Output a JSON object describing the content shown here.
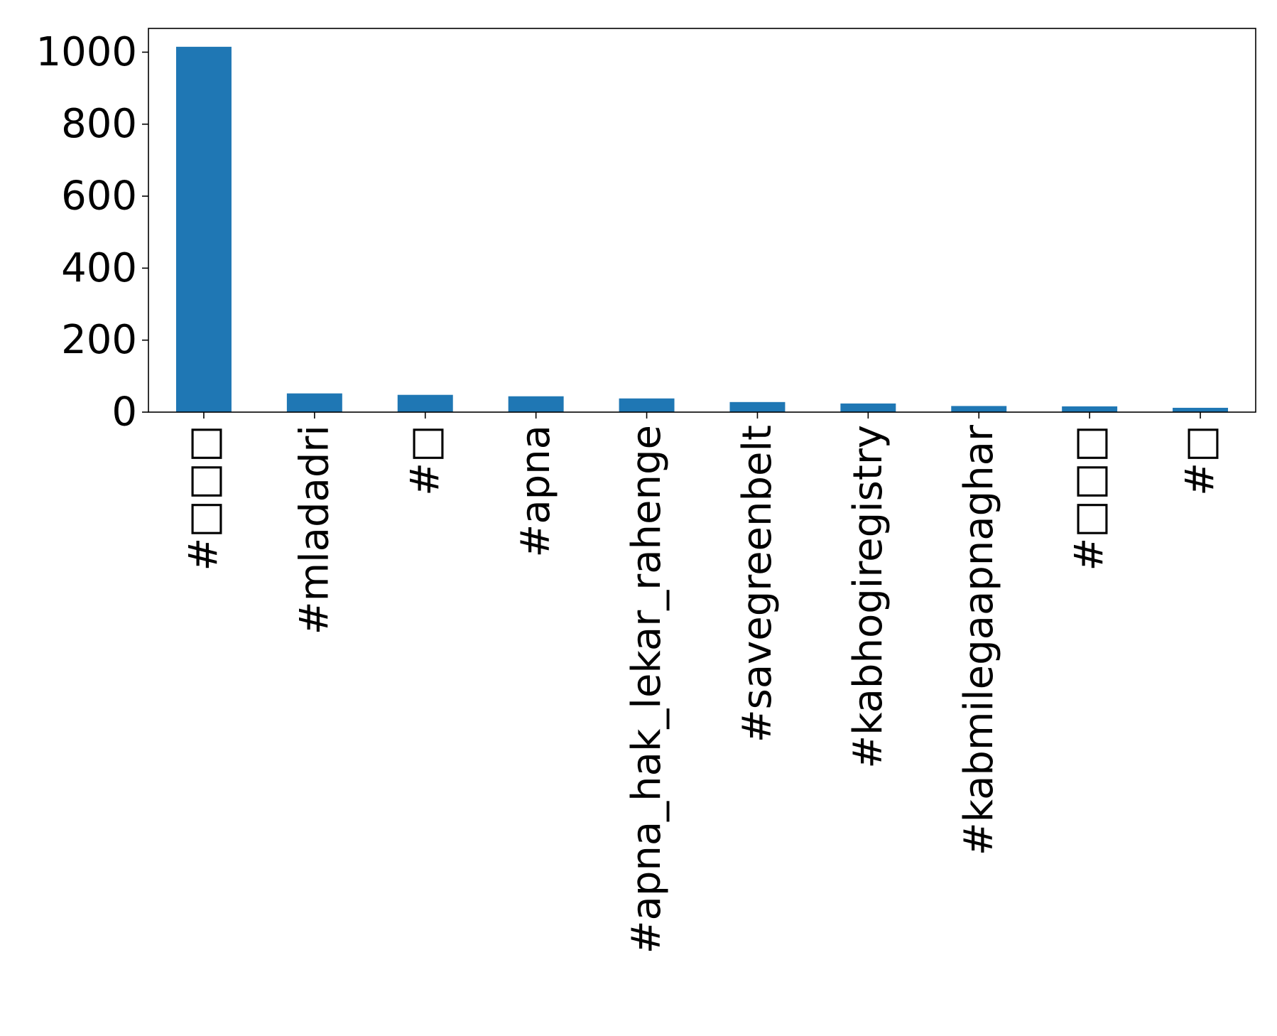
{
  "chart_data": {
    "type": "bar",
    "title": "",
    "xlabel": "",
    "ylabel": "",
    "categories": [
      "#□□□",
      "#mladadri",
      "#□",
      "#apna",
      "#apna_hak_lekar_rahenge",
      "#savegreenbelt",
      "#kabhogiregistry",
      "#kabmilegaapnaghar",
      "#□□□",
      "#□"
    ],
    "values": [
      1015,
      52,
      48,
      44,
      38,
      28,
      24,
      17,
      16,
      12
    ],
    "ylim": [
      0,
      1066
    ],
    "yticks": [
      0,
      200,
      400,
      600,
      800,
      1000
    ],
    "bar_color": "#1f77b4",
    "grid": false,
    "legend": "none"
  }
}
